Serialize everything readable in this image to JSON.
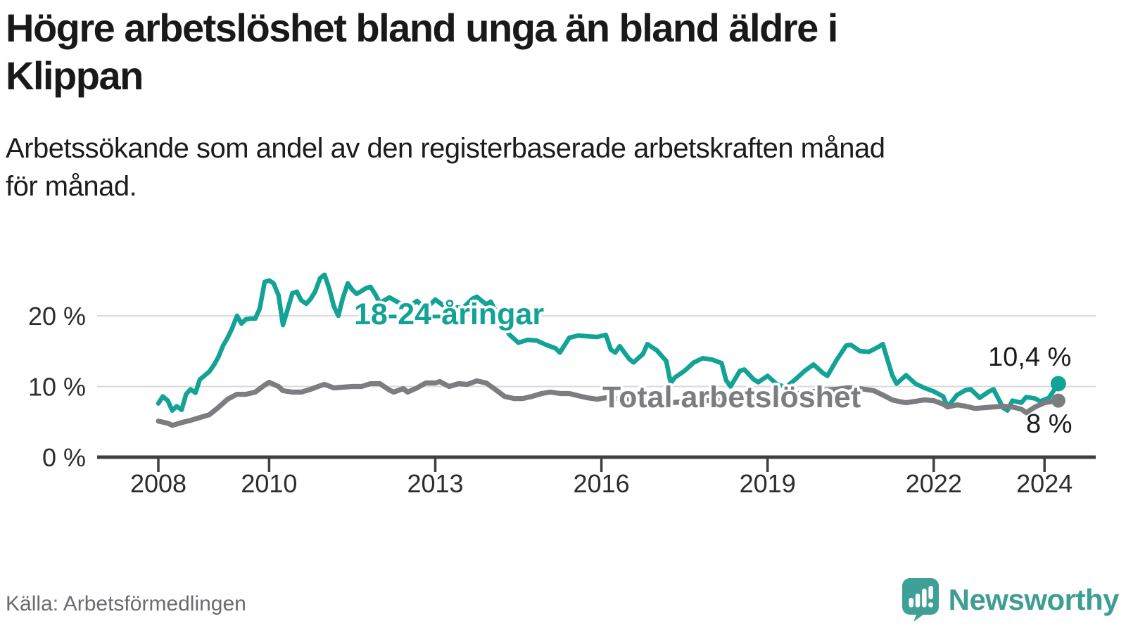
{
  "header": {
    "title_lines": [
      "Högre arbetslöshet bland unga än bland äldre i",
      "Klippan"
    ],
    "subtitle_lines": [
      "Arbetssökande som andel av den registerbaserade arbetskraften månad",
      "för månad."
    ]
  },
  "footer": {
    "source": "Källa: Arbetsförmedlingen",
    "brand": "Newsworthy",
    "brand_color": "#3f9d94"
  },
  "chart_data": {
    "type": "line",
    "unit": "%",
    "title": "Högre arbetslöshet bland unga än bland äldre i Klippan",
    "xlabel": "",
    "ylabel": "",
    "x_range": [
      2008,
      2024.6
    ],
    "y_range": [
      0,
      27
    ],
    "grid": "horizontal",
    "grid_values": [
      10,
      20
    ],
    "x_axis": {
      "ticks": [
        {
          "value": 2008,
          "label": "2008"
        },
        {
          "value": 2010,
          "label": "2010"
        },
        {
          "value": 2013,
          "label": "2013"
        },
        {
          "value": 2016,
          "label": "2016"
        },
        {
          "value": 2019,
          "label": "2019"
        },
        {
          "value": 2022,
          "label": "2022"
        },
        {
          "value": 2024,
          "label": "2024"
        }
      ]
    },
    "y_axis": {
      "ticks": [
        {
          "value": 0,
          "label": "0 %"
        },
        {
          "value": 10,
          "label": "10 %"
        },
        {
          "value": 20,
          "label": "20 %"
        }
      ]
    },
    "series": [
      {
        "name": "18-24-åringar",
        "color": "#13a296",
        "end_label": "10,4 %",
        "end_value": 10.4,
        "points": [
          [
            2008.0,
            7.6
          ],
          [
            2008.08,
            8.6
          ],
          [
            2008.17,
            8.0
          ],
          [
            2008.25,
            6.6
          ],
          [
            2008.33,
            7.2
          ],
          [
            2008.42,
            6.7
          ],
          [
            2008.5,
            8.9
          ],
          [
            2008.58,
            9.6
          ],
          [
            2008.67,
            9.1
          ],
          [
            2008.75,
            11.0
          ],
          [
            2008.83,
            11.5
          ],
          [
            2008.92,
            12.1
          ],
          [
            2009.0,
            13.0
          ],
          [
            2009.08,
            14.1
          ],
          [
            2009.17,
            15.8
          ],
          [
            2009.25,
            16.9
          ],
          [
            2009.33,
            18.2
          ],
          [
            2009.42,
            20.0
          ],
          [
            2009.5,
            18.9
          ],
          [
            2009.58,
            19.5
          ],
          [
            2009.67,
            19.6
          ],
          [
            2009.75,
            19.6
          ],
          [
            2009.83,
            21.0
          ],
          [
            2009.92,
            24.8
          ],
          [
            2010.0,
            25.0
          ],
          [
            2010.08,
            24.6
          ],
          [
            2010.17,
            22.9
          ],
          [
            2010.25,
            18.7
          ],
          [
            2010.33,
            20.8
          ],
          [
            2010.42,
            23.2
          ],
          [
            2010.5,
            23.4
          ],
          [
            2010.58,
            22.2
          ],
          [
            2010.67,
            21.7
          ],
          [
            2010.75,
            22.4
          ],
          [
            2010.83,
            23.4
          ],
          [
            2010.92,
            25.3
          ],
          [
            2011.0,
            25.8
          ],
          [
            2011.08,
            24.0
          ],
          [
            2011.17,
            21.3
          ],
          [
            2011.25,
            20.0
          ],
          [
            2011.33,
            22.5
          ],
          [
            2011.42,
            24.6
          ],
          [
            2011.5,
            23.7
          ],
          [
            2011.58,
            23.1
          ],
          [
            2011.67,
            23.5
          ],
          [
            2011.75,
            23.9
          ],
          [
            2011.83,
            24.1
          ],
          [
            2011.92,
            23.0
          ],
          [
            2012.0,
            21.8
          ],
          [
            2012.17,
            22.6
          ],
          [
            2012.33,
            21.9
          ],
          [
            2012.5,
            21.2
          ],
          [
            2012.67,
            22.1
          ],
          [
            2012.83,
            21.0
          ],
          [
            2013.0,
            22.3
          ],
          [
            2013.17,
            21.3
          ],
          [
            2013.33,
            21.2
          ],
          [
            2013.5,
            21.1
          ],
          [
            2013.67,
            22.4
          ],
          [
            2013.75,
            22.7
          ],
          [
            2013.92,
            21.6
          ],
          [
            2014.0,
            22.0
          ],
          [
            2014.17,
            19.5
          ],
          [
            2014.33,
            17.4
          ],
          [
            2014.5,
            16.2
          ],
          [
            2014.67,
            16.6
          ],
          [
            2014.83,
            16.5
          ],
          [
            2015.0,
            15.9
          ],
          [
            2015.17,
            15.4
          ],
          [
            2015.25,
            14.8
          ],
          [
            2015.42,
            16.9
          ],
          [
            2015.58,
            17.2
          ],
          [
            2015.75,
            17.1
          ],
          [
            2015.92,
            17.0
          ],
          [
            2016.08,
            17.3
          ],
          [
            2016.17,
            15.2
          ],
          [
            2016.25,
            14.8
          ],
          [
            2016.33,
            15.7
          ],
          [
            2016.5,
            13.9
          ],
          [
            2016.58,
            13.4
          ],
          [
            2016.75,
            14.6
          ],
          [
            2016.83,
            16.0
          ],
          [
            2017.0,
            15.1
          ],
          [
            2017.17,
            13.6
          ],
          [
            2017.25,
            10.5
          ],
          [
            2017.33,
            11.3
          ],
          [
            2017.5,
            12.2
          ],
          [
            2017.67,
            13.4
          ],
          [
            2017.83,
            14.0
          ],
          [
            2018.0,
            13.8
          ],
          [
            2018.17,
            13.3
          ],
          [
            2018.25,
            10.9
          ],
          [
            2018.33,
            10.0
          ],
          [
            2018.5,
            12.2
          ],
          [
            2018.58,
            12.4
          ],
          [
            2018.75,
            11.0
          ],
          [
            2018.83,
            10.6
          ],
          [
            2019.0,
            11.5
          ],
          [
            2019.17,
            10.3
          ],
          [
            2019.33,
            9.9
          ],
          [
            2019.5,
            11.0
          ],
          [
            2019.67,
            12.2
          ],
          [
            2019.83,
            13.1
          ],
          [
            2020.0,
            11.9
          ],
          [
            2020.08,
            11.5
          ],
          [
            2020.25,
            13.8
          ],
          [
            2020.42,
            15.8
          ],
          [
            2020.5,
            15.9
          ],
          [
            2020.67,
            15.0
          ],
          [
            2020.83,
            14.9
          ],
          [
            2021.0,
            15.6
          ],
          [
            2021.08,
            16.0
          ],
          [
            2021.25,
            11.6
          ],
          [
            2021.33,
            10.4
          ],
          [
            2021.5,
            11.6
          ],
          [
            2021.67,
            10.4
          ],
          [
            2021.83,
            9.8
          ],
          [
            2022.0,
            9.3
          ],
          [
            2022.17,
            8.6
          ],
          [
            2022.25,
            7.1
          ],
          [
            2022.42,
            8.8
          ],
          [
            2022.58,
            9.5
          ],
          [
            2022.67,
            9.6
          ],
          [
            2022.83,
            8.4
          ],
          [
            2023.0,
            9.3
          ],
          [
            2023.08,
            9.6
          ],
          [
            2023.25,
            7.0
          ],
          [
            2023.33,
            6.6
          ],
          [
            2023.42,
            8.0
          ],
          [
            2023.58,
            7.7
          ],
          [
            2023.67,
            8.5
          ],
          [
            2023.83,
            8.3
          ],
          [
            2023.92,
            7.9
          ],
          [
            2024.08,
            8.4
          ],
          [
            2024.25,
            10.4
          ]
        ]
      },
      {
        "name": "Total arbetslöshet",
        "color": "#7c7d80",
        "end_label": "8 %",
        "end_value": 8,
        "points": [
          [
            2008.0,
            5.1
          ],
          [
            2008.17,
            4.8
          ],
          [
            2008.25,
            4.5
          ],
          [
            2008.42,
            4.9
          ],
          [
            2008.58,
            5.2
          ],
          [
            2008.75,
            5.6
          ],
          [
            2008.92,
            6.0
          ],
          [
            2009.08,
            7.0
          ],
          [
            2009.25,
            8.2
          ],
          [
            2009.42,
            8.9
          ],
          [
            2009.58,
            8.9
          ],
          [
            2009.75,
            9.2
          ],
          [
            2009.92,
            10.2
          ],
          [
            2010.0,
            10.6
          ],
          [
            2010.17,
            10.0
          ],
          [
            2010.25,
            9.4
          ],
          [
            2010.42,
            9.2
          ],
          [
            2010.58,
            9.2
          ],
          [
            2010.75,
            9.6
          ],
          [
            2010.92,
            10.1
          ],
          [
            2011.0,
            10.3
          ],
          [
            2011.17,
            9.8
          ],
          [
            2011.33,
            9.9
          ],
          [
            2011.5,
            10.0
          ],
          [
            2011.67,
            10.0
          ],
          [
            2011.83,
            10.4
          ],
          [
            2012.0,
            10.4
          ],
          [
            2012.17,
            9.5
          ],
          [
            2012.25,
            9.2
          ],
          [
            2012.42,
            9.7
          ],
          [
            2012.5,
            9.2
          ],
          [
            2012.67,
            9.8
          ],
          [
            2012.83,
            10.5
          ],
          [
            2013.0,
            10.5
          ],
          [
            2013.08,
            10.7
          ],
          [
            2013.25,
            10.0
          ],
          [
            2013.42,
            10.4
          ],
          [
            2013.58,
            10.3
          ],
          [
            2013.75,
            10.8
          ],
          [
            2013.92,
            10.5
          ],
          [
            2014.08,
            9.6
          ],
          [
            2014.25,
            8.6
          ],
          [
            2014.42,
            8.3
          ],
          [
            2014.58,
            8.3
          ],
          [
            2014.75,
            8.6
          ],
          [
            2014.92,
            9.0
          ],
          [
            2015.08,
            9.2
          ],
          [
            2015.25,
            9.0
          ],
          [
            2015.42,
            9.0
          ],
          [
            2015.58,
            8.7
          ],
          [
            2015.75,
            8.4
          ],
          [
            2015.92,
            8.2
          ],
          [
            2016.08,
            8.4
          ],
          [
            2016.25,
            8.3
          ],
          [
            2016.42,
            8.2
          ],
          [
            2016.58,
            8.0
          ],
          [
            2016.75,
            8.0
          ],
          [
            2016.92,
            8.0
          ],
          [
            2017.08,
            7.8
          ],
          [
            2017.25,
            7.7
          ],
          [
            2017.42,
            7.8
          ],
          [
            2017.58,
            7.9
          ],
          [
            2017.75,
            8.0
          ],
          [
            2017.92,
            8.0
          ],
          [
            2018.08,
            8.1
          ],
          [
            2018.25,
            8.1
          ],
          [
            2018.42,
            8.2
          ],
          [
            2018.58,
            8.3
          ],
          [
            2018.75,
            8.4
          ],
          [
            2018.92,
            8.5
          ],
          [
            2019.08,
            8.7
          ],
          [
            2019.25,
            8.8
          ],
          [
            2019.42,
            8.9
          ],
          [
            2019.58,
            9.0
          ],
          [
            2019.75,
            9.2
          ],
          [
            2019.92,
            9.4
          ],
          [
            2020.08,
            9.5
          ],
          [
            2020.25,
            9.6
          ],
          [
            2020.42,
            9.8
          ],
          [
            2020.58,
            9.8
          ],
          [
            2020.75,
            9.6
          ],
          [
            2020.92,
            9.4
          ],
          [
            2021.08,
            8.8
          ],
          [
            2021.25,
            8.1
          ],
          [
            2021.42,
            7.8
          ],
          [
            2021.5,
            7.7
          ],
          [
            2021.67,
            7.9
          ],
          [
            2021.83,
            8.1
          ],
          [
            2022.0,
            8.0
          ],
          [
            2022.17,
            7.5
          ],
          [
            2022.25,
            7.1
          ],
          [
            2022.42,
            7.4
          ],
          [
            2022.58,
            7.2
          ],
          [
            2022.75,
            6.9
          ],
          [
            2022.92,
            7.0
          ],
          [
            2023.08,
            7.1
          ],
          [
            2023.25,
            7.2
          ],
          [
            2023.42,
            7.1
          ],
          [
            2023.58,
            6.8
          ],
          [
            2023.67,
            6.3
          ],
          [
            2023.83,
            7.1
          ],
          [
            2024.0,
            7.7
          ],
          [
            2024.25,
            8.0
          ]
        ]
      }
    ]
  }
}
